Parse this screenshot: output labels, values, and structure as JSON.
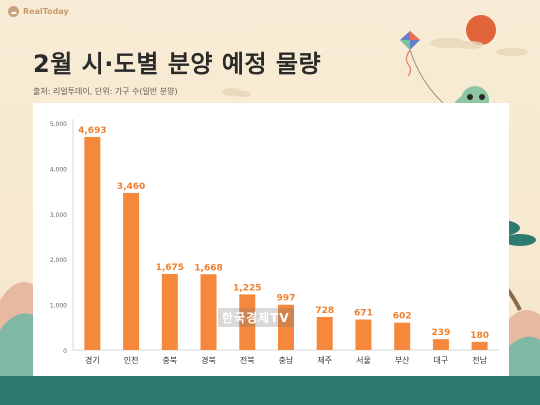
{
  "brand": {
    "name": "RealToday",
    "logo_icon": "realtoday-logo-icon"
  },
  "header": {
    "title": "2월 시·도별 분양 예정 물량",
    "source": "출처: 리얼투데이, 단위: 가구 수(일반 분양)"
  },
  "watermark": {
    "text": "한국경제TV"
  },
  "colors": {
    "bar": "#f5883d",
    "label": "#ef7f30",
    "accent_dark": "#2f7a70",
    "sun": "#e2653a"
  },
  "decorations": [
    "sun-icon",
    "kite-icon",
    "dragon-icon",
    "pine-tree-icon",
    "mountain-icon"
  ],
  "chart_data": {
    "type": "bar",
    "title": "2월 시·도별 분양 예정 물량",
    "xlabel": "",
    "ylabel": "",
    "categories": [
      "경기",
      "인천",
      "충북",
      "경북",
      "전북",
      "충남",
      "제주",
      "서울",
      "부산",
      "대구",
      "전남"
    ],
    "values": [
      4693,
      3460,
      1675,
      1668,
      1225,
      997,
      728,
      671,
      602,
      239,
      180
    ],
    "data_labels": [
      "4,693",
      "3,460",
      "1,675",
      "1,668",
      "1,225",
      "997",
      "728",
      "671",
      "602",
      "239",
      "180"
    ],
    "yticks": [
      0,
      1000,
      2000,
      3000,
      4000,
      5000
    ],
    "ytick_labels": [
      "0",
      "1,000",
      "2,000",
      "3,000",
      "4,000",
      "5,000"
    ],
    "ylim": [
      0,
      5000
    ],
    "grid": false,
    "legend": "none"
  }
}
